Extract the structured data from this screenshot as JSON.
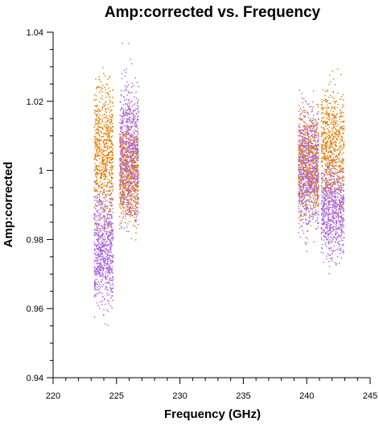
{
  "chart_data": {
    "type": "scatter",
    "title": "Amp:corrected vs. Frequency",
    "xlabel": "Frequency (GHz)",
    "ylabel": "Amp:corrected",
    "xlim": [
      220,
      245
    ],
    "ylim": [
      0.94,
      1.04
    ],
    "x_ticks": [
      "220",
      "225",
      "230",
      "235",
      "240",
      "245"
    ],
    "y_ticks": [
      "0.94",
      "0.96",
      "0.98",
      "1",
      "1.02",
      "1.04"
    ],
    "grid": false,
    "legend": "none",
    "series": [
      {
        "color": "#e07b00",
        "clusters": [
          {
            "x_range": [
              223.2,
              224.7
            ],
            "y_range": [
              0.9755,
              1.034
            ]
          },
          {
            "x_range": [
              225.2,
              226.7
            ],
            "y_range": [
              0.977,
              1.0225
            ]
          },
          {
            "x_range": [
              239.3,
              240.9
            ],
            "y_range": [
              0.9815,
              1.023
            ]
          },
          {
            "x_range": [
              241.1,
              242.9
            ],
            "y_range": [
              0.9795,
              1.033
            ]
          }
        ]
      },
      {
        "color": "#a560dd",
        "clusters": [
          {
            "x_range": [
              223.2,
              224.7
            ],
            "y_range": [
              0.954,
              1.0
            ]
          },
          {
            "x_range": [
              225.2,
              226.7
            ],
            "y_range": [
              0.975,
              1.038
            ]
          },
          {
            "x_range": [
              239.3,
              240.9
            ],
            "y_range": [
              0.974,
              1.026
            ]
          },
          {
            "x_range": [
              241.1,
              242.9
            ],
            "y_range": [
              0.969,
              1.008
            ]
          }
        ]
      }
    ]
  }
}
